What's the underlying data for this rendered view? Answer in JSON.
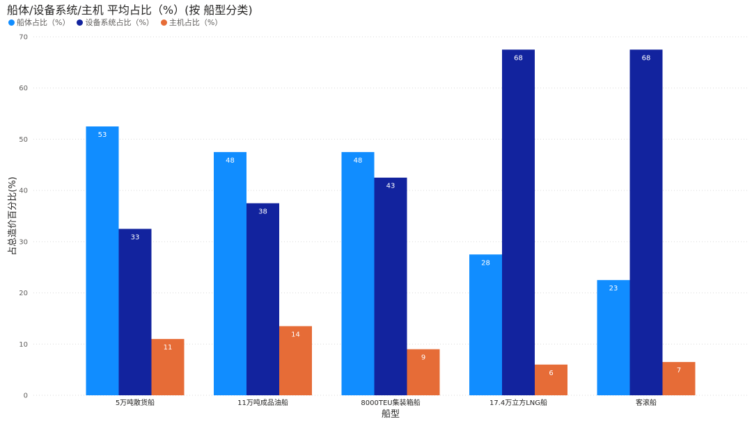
{
  "chart_data": {
    "type": "bar",
    "title": "船体/设备系统/主机 平均占比（%）(按 船型分类)",
    "xlabel": "船型",
    "ylabel": "占总造价百分比(%)",
    "ylim": [
      0,
      70
    ],
    "yticks": [
      0,
      10,
      20,
      30,
      40,
      50,
      60,
      70
    ],
    "grid": true,
    "legend_position": "top-left",
    "categories": [
      "5万吨散货船",
      "11万吨成品油船",
      "8000TEU集装箱船",
      "17.4万立方LNG船",
      "客滚船"
    ],
    "series": [
      {
        "name": "船体占比（%）",
        "color": "#118DFF",
        "values": [
          52.5,
          47.5,
          47.5,
          27.5,
          22.5
        ],
        "labels": [
          "53",
          "48",
          "48",
          "28",
          "23"
        ]
      },
      {
        "name": "设备系统占比（%）",
        "color": "#12239E",
        "values": [
          32.5,
          37.5,
          42.5,
          67.5,
          67.5
        ],
        "labels": [
          "33",
          "38",
          "43",
          "68",
          "68"
        ]
      },
      {
        "name": "主机占比（%）",
        "color": "#E66C37",
        "values": [
          11,
          13.5,
          9,
          6,
          6.5
        ],
        "labels": [
          "11",
          "14",
          "9",
          "6",
          "7"
        ]
      }
    ]
  }
}
